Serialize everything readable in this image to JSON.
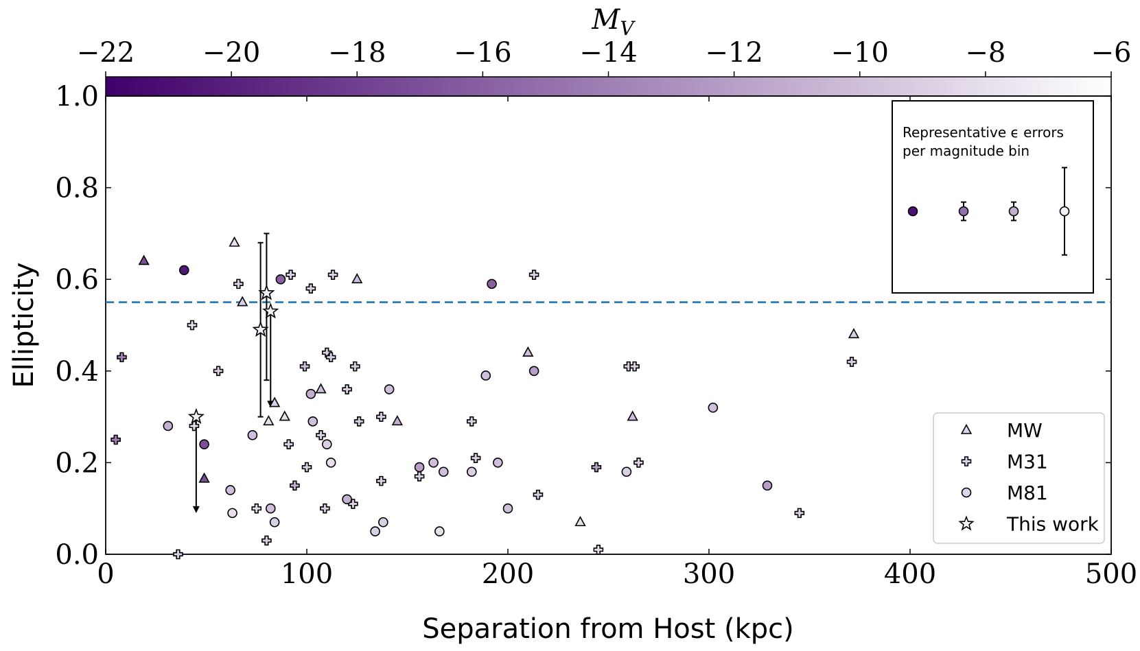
{
  "chart_data": {
    "type": "scatter",
    "xlabel": "Separation from Host (kpc)",
    "ylabel": "Ellipticity",
    "xlim": [
      0,
      500
    ],
    "ylim": [
      0.0,
      1.0
    ],
    "x_ticks": [
      "0",
      "100",
      "200",
      "300",
      "400",
      "500"
    ],
    "y_ticks": [
      "0.0",
      "0.2",
      "0.4",
      "0.6",
      "0.8",
      "1.0"
    ],
    "colorbar": {
      "label": "M",
      "label_sub": "V",
      "range": [
        -22,
        -6
      ],
      "ticks": [
        "−22",
        "−20",
        "−18",
        "−16",
        "−14",
        "−12",
        "−10",
        "−8",
        "−6"
      ],
      "color_bright": "#40006a",
      "color_faint": "#ffffff"
    },
    "reference_line": {
      "y": 0.55,
      "style": "dashed",
      "color": "#1f77b4"
    },
    "legend": {
      "placement": "lower right",
      "entries": [
        "MW",
        "M31",
        "M81",
        "This work"
      ]
    },
    "inset": {
      "title_line1": "Representative ϵ errors",
      "title_line2": "per magnitude bin",
      "points": [
        {
          "mv": -21,
          "e": 0.75,
          "err": 0.0
        },
        {
          "mv": -15,
          "e": 0.75,
          "err": 0.02
        },
        {
          "mv": -11,
          "e": 0.75,
          "err": 0.02
        },
        {
          "mv": -7,
          "e": 0.75,
          "err": 0.095
        }
      ]
    },
    "series": [
      {
        "name": "MW",
        "marker": "triangle",
        "points": [
          {
            "x": 19,
            "y": 0.64,
            "mv": -17
          },
          {
            "x": 64,
            "y": 0.68,
            "mv": -8
          },
          {
            "x": 68,
            "y": 0.55,
            "mv": -9
          },
          {
            "x": 81,
            "y": 0.29,
            "mv": -8
          },
          {
            "x": 84,
            "y": 0.33,
            "mv": -9
          },
          {
            "x": 89,
            "y": 0.3,
            "mv": -8
          },
          {
            "x": 107,
            "y": 0.36,
            "mv": -10
          },
          {
            "x": 125,
            "y": 0.6,
            "mv": -10
          },
          {
            "x": 145,
            "y": 0.29,
            "mv": -11
          },
          {
            "x": 49,
            "y": 0.165,
            "mv": -17
          },
          {
            "x": 210,
            "y": 0.44,
            "mv": -10
          },
          {
            "x": 236,
            "y": 0.07,
            "mv": -8
          },
          {
            "x": 262,
            "y": 0.3,
            "mv": -10
          },
          {
            "x": 372,
            "y": 0.48,
            "mv": -9
          }
        ]
      },
      {
        "name": "M31",
        "marker": "plus",
        "points": [
          {
            "x": 5,
            "y": 0.25,
            "mv": -14
          },
          {
            "x": 8,
            "y": 0.43,
            "mv": -14
          },
          {
            "x": 36,
            "y": 0.0,
            "mv": -9
          },
          {
            "x": 43,
            "y": 0.5,
            "mv": -8
          },
          {
            "x": 44,
            "y": 0.28,
            "mv": -8
          },
          {
            "x": 56,
            "y": 0.4,
            "mv": -9
          },
          {
            "x": 66,
            "y": 0.59,
            "mv": -9
          },
          {
            "x": 75,
            "y": 0.1,
            "mv": -8
          },
          {
            "x": 80,
            "y": 0.03,
            "mv": -9
          },
          {
            "x": 91,
            "y": 0.24,
            "mv": -9
          },
          {
            "x": 92,
            "y": 0.61,
            "mv": -9
          },
          {
            "x": 94,
            "y": 0.15,
            "mv": -11
          },
          {
            "x": 99,
            "y": 0.41,
            "mv": -10
          },
          {
            "x": 100,
            "y": 0.19,
            "mv": -9
          },
          {
            "x": 102,
            "y": 0.58,
            "mv": -9
          },
          {
            "x": 107,
            "y": 0.26,
            "mv": -9
          },
          {
            "x": 109,
            "y": 0.1,
            "mv": -9
          },
          {
            "x": 110,
            "y": 0.44,
            "mv": -9
          },
          {
            "x": 112,
            "y": 0.43,
            "mv": -9
          },
          {
            "x": 113,
            "y": 0.61,
            "mv": -9
          },
          {
            "x": 120,
            "y": 0.36,
            "mv": -9
          },
          {
            "x": 123,
            "y": 0.11,
            "mv": -9
          },
          {
            "x": 124,
            "y": 0.41,
            "mv": -9
          },
          {
            "x": 126,
            "y": 0.29,
            "mv": -9
          },
          {
            "x": 137,
            "y": 0.3,
            "mv": -9
          },
          {
            "x": 137,
            "y": 0.16,
            "mv": -9
          },
          {
            "x": 156,
            "y": 0.17,
            "mv": -9
          },
          {
            "x": 182,
            "y": 0.29,
            "mv": -9
          },
          {
            "x": 184,
            "y": 0.21,
            "mv": -9
          },
          {
            "x": 213,
            "y": 0.61,
            "mv": -9
          },
          {
            "x": 215,
            "y": 0.13,
            "mv": -9
          },
          {
            "x": 244,
            "y": 0.19,
            "mv": -12
          },
          {
            "x": 245,
            "y": 0.01,
            "mv": -8
          },
          {
            "x": 260,
            "y": 0.41,
            "mv": -9
          },
          {
            "x": 263,
            "y": 0.41,
            "mv": -9
          },
          {
            "x": 265,
            "y": 0.2,
            "mv": -9
          },
          {
            "x": 345,
            "y": 0.09,
            "mv": -9
          },
          {
            "x": 371,
            "y": 0.42,
            "mv": -9
          }
        ]
      },
      {
        "name": "M81",
        "marker": "circle",
        "points": [
          {
            "x": 31,
            "y": 0.28,
            "mv": -11
          },
          {
            "x": 39,
            "y": 0.62,
            "mv": -20.5
          },
          {
            "x": 49,
            "y": 0.24,
            "mv": -17
          },
          {
            "x": 62,
            "y": 0.14,
            "mv": -10
          },
          {
            "x": 63,
            "y": 0.09,
            "mv": -8
          },
          {
            "x": 73,
            "y": 0.26,
            "mv": -10
          },
          {
            "x": 82,
            "y": 0.1,
            "mv": -10
          },
          {
            "x": 84,
            "y": 0.07,
            "mv": -9
          },
          {
            "x": 87,
            "y": 0.6,
            "mv": -16
          },
          {
            "x": 102,
            "y": 0.35,
            "mv": -11
          },
          {
            "x": 103,
            "y": 0.29,
            "mv": -10
          },
          {
            "x": 110,
            "y": 0.24,
            "mv": -9
          },
          {
            "x": 112,
            "y": 0.2,
            "mv": -8
          },
          {
            "x": 120,
            "y": 0.12,
            "mv": -11
          },
          {
            "x": 134,
            "y": 0.05,
            "mv": -9
          },
          {
            "x": 138,
            "y": 0.07,
            "mv": -9
          },
          {
            "x": 141,
            "y": 0.36,
            "mv": -10
          },
          {
            "x": 156,
            "y": 0.19,
            "mv": -12
          },
          {
            "x": 163,
            "y": 0.2,
            "mv": -10
          },
          {
            "x": 166,
            "y": 0.05,
            "mv": -8
          },
          {
            "x": 168,
            "y": 0.18,
            "mv": -10
          },
          {
            "x": 182,
            "y": 0.18,
            "mv": -9
          },
          {
            "x": 189,
            "y": 0.39,
            "mv": -10
          },
          {
            "x": 192,
            "y": 0.59,
            "mv": -16
          },
          {
            "x": 195,
            "y": 0.2,
            "mv": -10
          },
          {
            "x": 200,
            "y": 0.1,
            "mv": -10
          },
          {
            "x": 213,
            "y": 0.4,
            "mv": -12
          },
          {
            "x": 259,
            "y": 0.18,
            "mv": -9
          },
          {
            "x": 302,
            "y": 0.32,
            "mv": -10
          },
          {
            "x": 329,
            "y": 0.15,
            "mv": -12
          }
        ]
      },
      {
        "name": "This work",
        "marker": "star",
        "points": [
          {
            "x": 45,
            "y": 0.3,
            "mv": -7,
            "down_to": 0.09
          },
          {
            "x": 77,
            "y": 0.49,
            "mv": -7,
            "err": 0.19
          },
          {
            "x": 80,
            "y": 0.57,
            "mv": -7,
            "err_lo": 0.19,
            "err_hi": 0.13
          },
          {
            "x": 82,
            "y": 0.53,
            "mv": -7,
            "down_to": 0.32
          }
        ]
      }
    ]
  }
}
